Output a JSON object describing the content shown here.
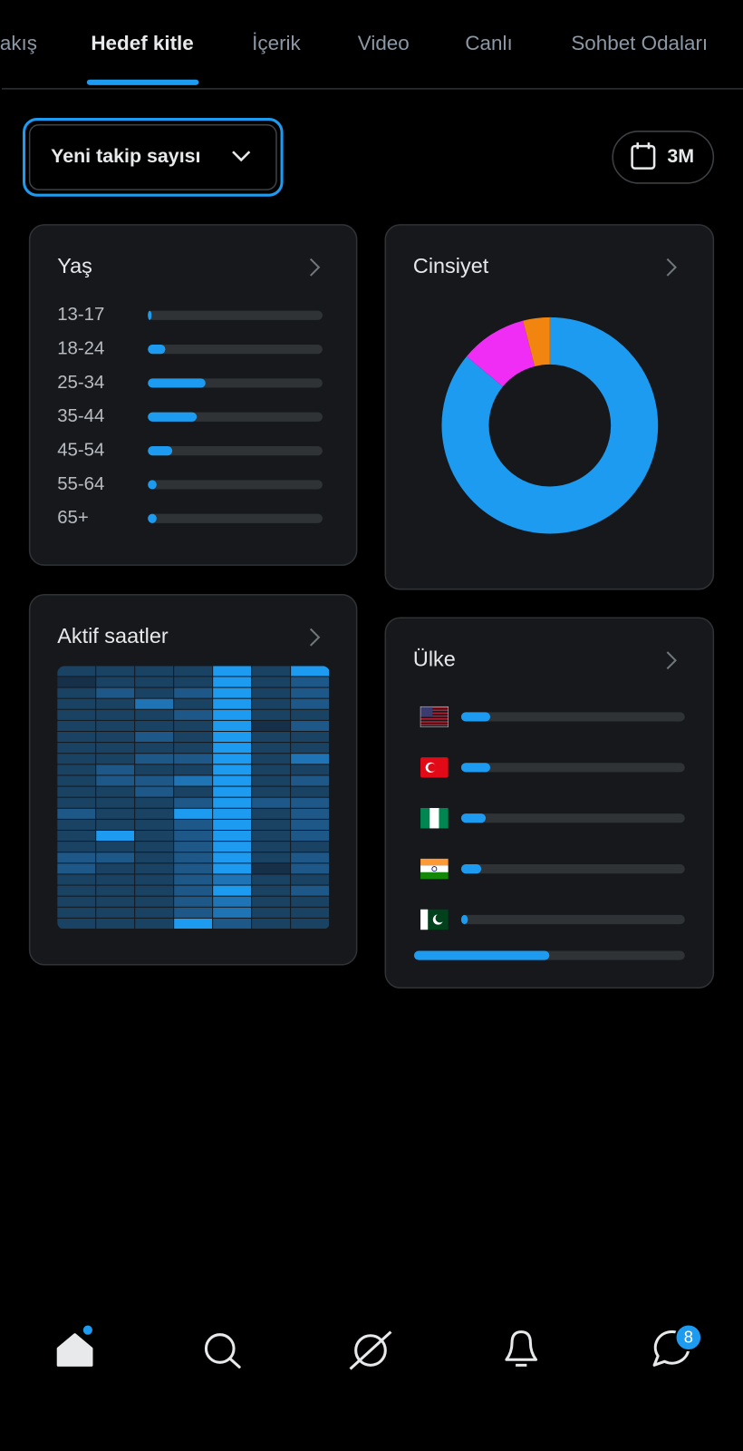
{
  "tabs": {
    "items": [
      "akış",
      "Hedef kitle",
      "İçerik",
      "Video",
      "Canlı",
      "Sohbet Odaları"
    ],
    "active": 1
  },
  "filter": {
    "metric": "Yeni takip sayısı",
    "period": "3M"
  },
  "age": {
    "title": "Yaş",
    "categories": [
      "13-17",
      "18-24",
      "25-34",
      "35-44",
      "45-54",
      "55-64",
      "65+"
    ],
    "values": [
      1,
      10,
      33,
      28,
      14,
      5,
      5
    ],
    "color": "#1d9bf0",
    "xlim": [
      0,
      100
    ]
  },
  "gender": {
    "title": "Cinsiyet",
    "type": "pie",
    "values": [
      86,
      10,
      4
    ],
    "colors": [
      "#1d9bf0",
      "#f02df5",
      "#f2850f"
    ]
  },
  "heatmap": {
    "title": "Aktif saatler",
    "rows": [
      [
        1,
        1,
        1,
        1,
        4,
        1,
        4
      ],
      [
        0,
        1,
        1,
        1,
        4,
        1,
        2
      ],
      [
        1,
        2,
        1,
        2,
        4,
        1,
        2
      ],
      [
        1,
        1,
        3,
        1,
        4,
        1,
        2
      ],
      [
        1,
        1,
        1,
        2,
        4,
        1,
        1
      ],
      [
        1,
        1,
        1,
        1,
        4,
        0,
        2
      ],
      [
        1,
        1,
        2,
        1,
        4,
        1,
        1
      ],
      [
        1,
        1,
        1,
        1,
        4,
        1,
        1
      ],
      [
        1,
        1,
        2,
        2,
        4,
        1,
        3
      ],
      [
        1,
        2,
        1,
        1,
        4,
        1,
        1
      ],
      [
        1,
        2,
        2,
        3,
        4,
        1,
        2
      ],
      [
        1,
        1,
        2,
        1,
        4,
        1,
        1
      ],
      [
        1,
        1,
        1,
        2,
        4,
        2,
        2
      ],
      [
        2,
        1,
        1,
        4,
        4,
        1,
        2
      ],
      [
        1,
        1,
        1,
        2,
        4,
        1,
        2
      ],
      [
        1,
        4,
        1,
        2,
        4,
        1,
        2
      ],
      [
        1,
        1,
        1,
        2,
        4,
        1,
        1
      ],
      [
        2,
        2,
        1,
        2,
        4,
        1,
        2
      ],
      [
        2,
        1,
        1,
        2,
        4,
        0,
        2
      ],
      [
        1,
        1,
        1,
        2,
        3,
        1,
        1
      ],
      [
        1,
        1,
        1,
        2,
        4,
        1,
        2
      ],
      [
        1,
        1,
        1,
        2,
        3,
        1,
        1
      ],
      [
        1,
        1,
        1,
        2,
        3,
        1,
        1
      ],
      [
        1,
        1,
        1,
        4,
        2,
        1,
        1
      ]
    ]
  },
  "country": {
    "title": "Ülke",
    "values": [
      13,
      13,
      11,
      9,
      3
    ],
    "progress": 50,
    "color": "#1d9bf0",
    "xlim": [
      0,
      100
    ]
  },
  "nav": {
    "badge": "8"
  }
}
